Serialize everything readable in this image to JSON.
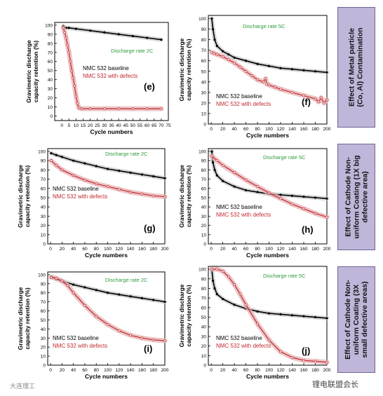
{
  "side_labels": [
    "Effect of Metal particle\n(Co, Al) Contamination",
    "Effect of Cathode Non-\nuniform Coating (1X big\ndefective area)",
    "Effect of Cathode Non-\nuniform Coating (3X\nsmall defective areas)"
  ],
  "watermark_left": "大连理工",
  "watermark_right": "锂电联盟会长",
  "chart_data": [
    {
      "id": "e",
      "type": "line",
      "panel_label": "(e)",
      "annotation": "Discharge rate 2C",
      "ylabel": "Gravimetric discharge\ncapacity retention (%)",
      "xlabel": "Cycle numbers",
      "xlim": [
        -5,
        75
      ],
      "ylim": [
        -5,
        103
      ],
      "xticks": [
        0,
        5,
        10,
        15,
        20,
        25,
        30,
        35,
        40,
        45,
        50,
        55,
        60,
        65,
        70,
        75
      ],
      "yticks": [
        0,
        10,
        20,
        30,
        40,
        50,
        60,
        70,
        80,
        90,
        100
      ],
      "series": [
        {
          "name": "NMC 532 baseline",
          "color": "#000000",
          "x": [
            1,
            3,
            5,
            10,
            20,
            30,
            40,
            50,
            60,
            70
          ],
          "y": [
            99,
            97,
            97,
            96,
            94,
            92,
            90,
            88,
            86,
            84
          ]
        },
        {
          "name": "NMC 532 with defects",
          "color": "#c0282d",
          "x": [
            1,
            2,
            3,
            4,
            5,
            6,
            7,
            8,
            9,
            10,
            11,
            12,
            14,
            20,
            30,
            40,
            50,
            60,
            70
          ],
          "y": [
            97,
            92,
            86,
            78,
            70,
            60,
            50,
            42,
            33,
            22,
            14,
            9,
            8,
            8,
            8,
            8,
            8,
            8,
            8
          ]
        }
      ]
    },
    {
      "id": "f",
      "type": "line",
      "panel_label": "(f)",
      "annotation": "Discharge rate 5C",
      "ylabel": "Gravimetric discharge\ncapacity retention (%)",
      "xlabel": "Cycle numbers",
      "xlim": [
        -5,
        200
      ],
      "ylim": [
        0,
        103
      ],
      "xticks": [
        0,
        20,
        40,
        60,
        80,
        100,
        120,
        140,
        160,
        180,
        200
      ],
      "yticks": [
        0,
        10,
        20,
        30,
        40,
        50,
        60,
        70,
        80,
        90,
        100
      ],
      "series": [
        {
          "name": "NMC 532 baseline",
          "color": "#000000",
          "x": [
            1,
            3,
            6,
            10,
            20,
            30,
            40,
            60,
            80,
            100,
            120,
            140,
            160,
            180,
            200
          ],
          "y": [
            100,
            90,
            80,
            74,
            69,
            66,
            63,
            60,
            57,
            55,
            53,
            52,
            51,
            50,
            49
          ]
        },
        {
          "name": "NMC 532 with defects",
          "color": "#c0282d",
          "x": [
            1,
            5,
            10,
            20,
            30,
            40,
            50,
            60,
            70,
            80,
            90,
            94,
            96,
            100,
            110,
            120,
            140,
            160,
            180,
            186,
            190,
            195,
            200
          ],
          "y": [
            68,
            67,
            66,
            64,
            61,
            58,
            54,
            50,
            46,
            42,
            40,
            43,
            38,
            37,
            35,
            33,
            30,
            27,
            24,
            21,
            25,
            20,
            23
          ]
        }
      ]
    },
    {
      "id": "g",
      "type": "line",
      "panel_label": "(g)",
      "annotation": "Discharge rate 2C",
      "ylabel": "Gravimetric discharge\ncapacity retention (%)",
      "xlabel": "Cycle numbers",
      "xlim": [
        -5,
        200
      ],
      "ylim": [
        0,
        103
      ],
      "xticks": [
        0,
        20,
        40,
        60,
        80,
        100,
        120,
        140,
        160,
        180,
        200
      ],
      "yticks": [
        0,
        10,
        20,
        30,
        40,
        50,
        60,
        70,
        80,
        90,
        100
      ],
      "series": [
        {
          "name": "NMC 532 baseline",
          "color": "#000000",
          "x": [
            1,
            10,
            20,
            40,
            60,
            80,
            100,
            120,
            140,
            160,
            180,
            200
          ],
          "y": [
            98,
            96,
            94,
            90,
            87,
            84,
            81,
            79,
            77,
            75,
            73,
            71
          ]
        },
        {
          "name": "NMC 532 with defects",
          "color": "#c0282d",
          "x": [
            1,
            10,
            20,
            40,
            60,
            80,
            100,
            120,
            140,
            160,
            180,
            200
          ],
          "y": [
            90,
            85,
            80,
            74,
            69,
            65,
            62,
            59,
            56,
            54,
            52,
            51
          ]
        }
      ]
    },
    {
      "id": "h",
      "type": "line",
      "panel_label": "(h)",
      "annotation": "Discharge rate 5C",
      "ylabel": "Gravimetric discharge\ncapacity retention (%)",
      "xlabel": "Cycle numbers",
      "xlim": [
        -5,
        200
      ],
      "ylim": [
        0,
        103
      ],
      "xticks": [
        0,
        20,
        40,
        60,
        80,
        100,
        120,
        140,
        160,
        180,
        200
      ],
      "yticks": [
        0,
        10,
        20,
        30,
        40,
        50,
        60,
        70,
        80,
        90,
        100
      ],
      "series": [
        {
          "name": "NMC 532 baseline",
          "color": "#000000",
          "x": [
            1,
            3,
            6,
            10,
            20,
            40,
            60,
            80,
            100,
            120,
            140,
            160,
            180,
            200
          ],
          "y": [
            100,
            88,
            80,
            74,
            68,
            62,
            58,
            56,
            54,
            53,
            52,
            51,
            50,
            49
          ]
        },
        {
          "name": "NMC 532 with defects",
          "color": "#c0282d",
          "x": [
            1,
            10,
            20,
            40,
            60,
            80,
            100,
            120,
            140,
            160,
            180,
            200
          ],
          "y": [
            95,
            90,
            85,
            77,
            69,
            62,
            55,
            49,
            43,
            38,
            33,
            29
          ]
        }
      ]
    },
    {
      "id": "i",
      "type": "line",
      "panel_label": "(i)",
      "annotation": "Discharge rate 2C",
      "ylabel": "Gravimetric discharge\ncapacity retention (%)",
      "xlabel": "Cycle numbers",
      "xlim": [
        -5,
        200
      ],
      "ylim": [
        0,
        103
      ],
      "xticks": [
        0,
        20,
        40,
        60,
        80,
        100,
        120,
        140,
        160,
        180,
        200
      ],
      "yticks": [
        0,
        10,
        20,
        30,
        40,
        50,
        60,
        70,
        80,
        90,
        100
      ],
      "series": [
        {
          "name": "NMC 532 baseline",
          "color": "#000000",
          "x": [
            1,
            10,
            20,
            40,
            60,
            80,
            100,
            120,
            140,
            160,
            180,
            200
          ],
          "y": [
            98,
            95,
            93,
            89,
            86,
            83,
            80,
            78,
            76,
            74,
            72,
            70
          ]
        },
        {
          "name": "NMC 532 with defects",
          "color": "#c0282d",
          "x": [
            1,
            10,
            20,
            30,
            40,
            60,
            80,
            100,
            120,
            140,
            160,
            180,
            200
          ],
          "y": [
            97,
            96,
            93,
            88,
            80,
            66,
            54,
            45,
            38,
            33,
            30,
            28,
            27
          ]
        }
      ]
    },
    {
      "id": "j",
      "type": "line",
      "panel_label": "(j)",
      "annotation": "Discharge rate 5C",
      "ylabel": "Gravimetric discharge\ncapacity retention (%)",
      "xlabel": "Cycle numbers",
      "xlim": [
        -5,
        200
      ],
      "ylim": [
        0,
        103
      ],
      "xticks": [
        0,
        20,
        40,
        60,
        80,
        100,
        120,
        140,
        160,
        180,
        200
      ],
      "yticks": [
        0,
        10,
        20,
        30,
        40,
        50,
        60,
        70,
        80,
        90,
        100
      ],
      "series": [
        {
          "name": "NMC 532 baseline",
          "color": "#000000",
          "x": [
            1,
            3,
            6,
            10,
            20,
            40,
            60,
            80,
            100,
            120,
            140,
            160,
            180,
            200
          ],
          "y": [
            100,
            88,
            80,
            74,
            69,
            63,
            59,
            56,
            54,
            53,
            52,
            51,
            50,
            49
          ]
        },
        {
          "name": "NMC 532 with defects",
          "color": "#c0282d",
          "x": [
            1,
            10,
            20,
            30,
            40,
            50,
            60,
            80,
            100,
            120,
            140,
            160,
            180,
            200
          ],
          "y": [
            100,
            100,
            98,
            92,
            84,
            74,
            63,
            43,
            26,
            14,
            8,
            5,
            4,
            3
          ]
        }
      ]
    }
  ]
}
